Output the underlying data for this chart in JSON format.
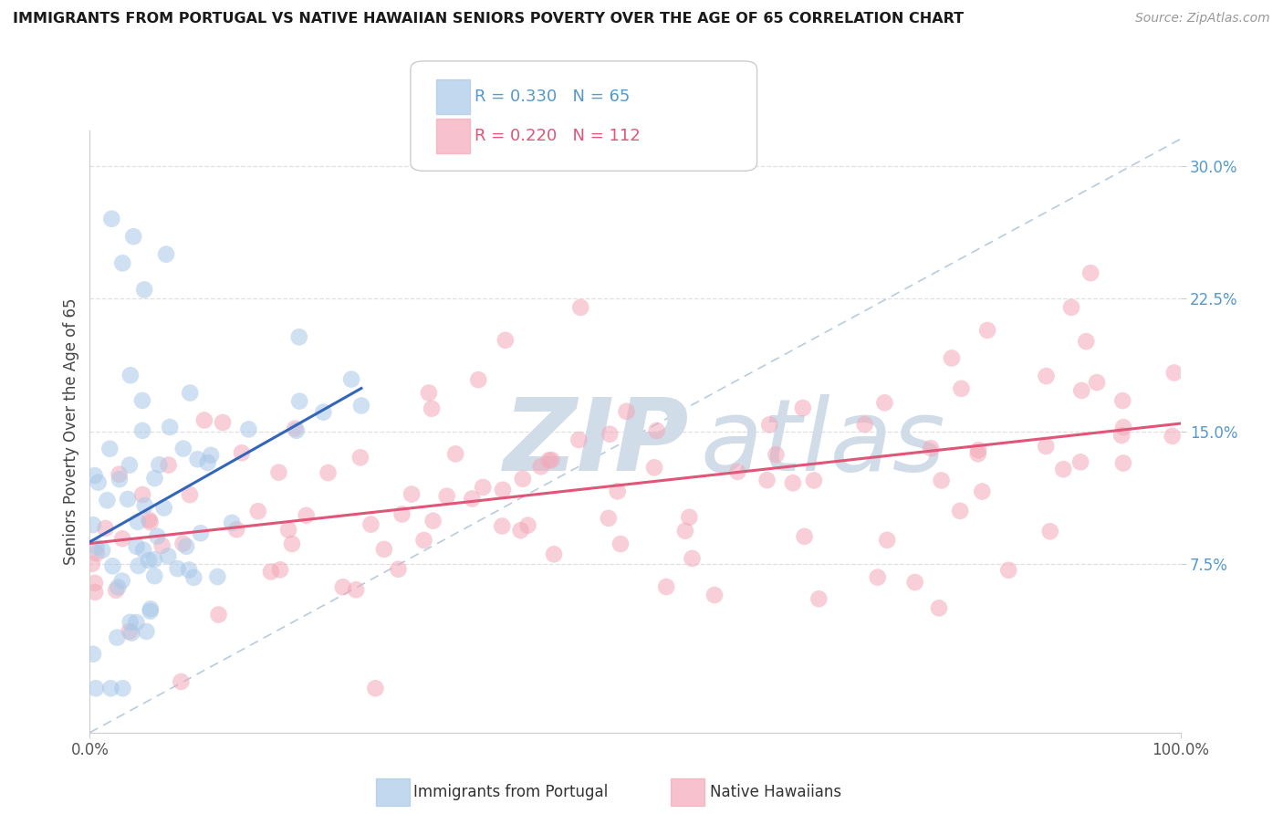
{
  "title": "IMMIGRANTS FROM PORTUGAL VS NATIVE HAWAIIAN SENIORS POVERTY OVER THE AGE OF 65 CORRELATION CHART",
  "source": "Source: ZipAtlas.com",
  "ylabel": "Seniors Poverty Over the Age of 65",
  "xlim": [
    0,
    100
  ],
  "ylim": [
    -2,
    32
  ],
  "ytick_positions": [
    7.5,
    15.0,
    22.5,
    30.0
  ],
  "ytick_labels": [
    "7.5%",
    "15.0%",
    "22.5%",
    "30.0%"
  ],
  "blue_color": "#A8C8E8",
  "blue_edge_color": "#A8C8E8",
  "pink_color": "#F4A8B8",
  "pink_edge_color": "#F4A8B8",
  "blue_trend_color": "#3366BB",
  "pink_trend_color": "#E05578",
  "diag_line_color": "#B8CCDD",
  "watermark_color": "#D0DCE8",
  "background_color": "#FFFFFF",
  "grid_color": "#E0E0E0",
  "title_fontsize": 11.5,
  "source_fontsize": 10,
  "tick_fontsize": 12,
  "ylabel_fontsize": 12,
  "legend_fontsize": 13,
  "ytick_color": "#5599CC",
  "xtick_color": "#555555"
}
